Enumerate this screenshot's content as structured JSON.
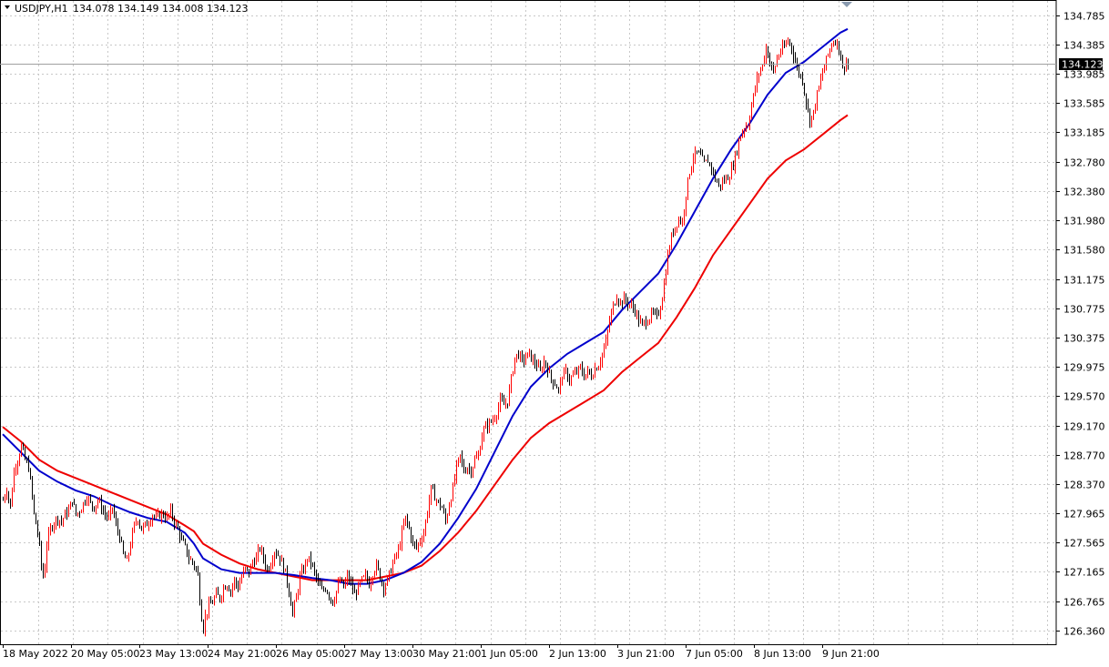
{
  "header": {
    "symbol": "USDJPY,H1",
    "ohlc": "134.078 134.149 134.008 134.123"
  },
  "current_price_label": "134.123",
  "colors": {
    "bull_candle": "#ff0000",
    "bear_candle": "#000000",
    "ma_fast": "#0000cc",
    "ma_slow": "#ee0000",
    "grid": "#c8c8c8",
    "price_line": "#a0a0a0",
    "price_tag_bg": "#000000"
  },
  "chart_data": {
    "type": "line",
    "title": "USDJPY,H1",
    "grid": true,
    "ylim": [
      126.16,
      134.985
    ],
    "y_ticks": [
      "134.785",
      "134.385",
      "133.985",
      "133.585",
      "133.185",
      "132.780",
      "132.380",
      "131.980",
      "131.580",
      "131.175",
      "130.775",
      "130.375",
      "129.975",
      "129.570",
      "129.170",
      "128.770",
      "128.370",
      "127.965",
      "127.565",
      "127.165",
      "126.765",
      "126.360"
    ],
    "x_ticks": [
      "18 May 2022",
      "20 May 05:00",
      "23 May 13:00",
      "24 May 21:00",
      "26 May 05:00",
      "27 May 13:00",
      "30 May 21:00",
      "1 Jun 05:00",
      "2 Jun 13:00",
      "3 Jun 21:00",
      "7 Jun 05:00",
      "8 Jun 13:00",
      "9 Jun 21:00"
    ],
    "price_path": [
      [
        0,
        128.15
      ],
      [
        4,
        128.3
      ],
      [
        8,
        128.05
      ],
      [
        12,
        128.55
      ],
      [
        16,
        128.7
      ],
      [
        20,
        128.88
      ],
      [
        24,
        128.7
      ],
      [
        28,
        128.6
      ],
      [
        32,
        128.2
      ],
      [
        34,
        127.95
      ],
      [
        38,
        127.7
      ],
      [
        40,
        127.5
      ],
      [
        42,
        127.25
      ],
      [
        44,
        127.1
      ],
      [
        46,
        127.25
      ],
      [
        48,
        127.55
      ],
      [
        52,
        127.75
      ],
      [
        56,
        127.85
      ],
      [
        60,
        127.9
      ],
      [
        64,
        127.85
      ],
      [
        68,
        127.95
      ],
      [
        72,
        128.0
      ],
      [
        76,
        128.15
      ],
      [
        80,
        127.95
      ],
      [
        84,
        128.0
      ],
      [
        88,
        128.1
      ],
      [
        92,
        128.2
      ],
      [
        96,
        128.1
      ],
      [
        100,
        128.05
      ],
      [
        104,
        128.15
      ],
      [
        108,
        128.05
      ],
      [
        112,
        127.95
      ],
      [
        116,
        127.9
      ],
      [
        120,
        128.05
      ],
      [
        124,
        127.8
      ],
      [
        128,
        127.65
      ],
      [
        132,
        127.4
      ],
      [
        136,
        127.3
      ],
      [
        140,
        127.55
      ],
      [
        144,
        127.8
      ],
      [
        148,
        127.9
      ],
      [
        152,
        127.75
      ],
      [
        156,
        127.8
      ],
      [
        160,
        127.85
      ],
      [
        164,
        127.95
      ],
      [
        168,
        127.9
      ],
      [
        172,
        127.95
      ],
      [
        176,
        127.95
      ],
      [
        180,
        127.9
      ],
      [
        184,
        128.0
      ],
      [
        188,
        127.85
      ],
      [
        192,
        127.75
      ],
      [
        196,
        127.6
      ],
      [
        200,
        127.5
      ],
      [
        204,
        127.35
      ],
      [
        208,
        127.3
      ],
      [
        212,
        127.2
      ],
      [
        214,
        127.1
      ],
      [
        216,
        126.8
      ],
      [
        218,
        126.55
      ],
      [
        220,
        126.4
      ],
      [
        222,
        126.55
      ],
      [
        226,
        126.7
      ],
      [
        230,
        126.75
      ],
      [
        234,
        126.85
      ],
      [
        238,
        126.8
      ],
      [
        242,
        126.95
      ],
      [
        246,
        127.0
      ],
      [
        250,
        126.9
      ],
      [
        254,
        127.05
      ],
      [
        258,
        126.95
      ],
      [
        262,
        127.1
      ],
      [
        266,
        127.2
      ],
      [
        270,
        127.15
      ],
      [
        274,
        127.3
      ],
      [
        278,
        127.35
      ],
      [
        282,
        127.5
      ],
      [
        286,
        127.35
      ],
      [
        290,
        127.2
      ],
      [
        294,
        127.3
      ],
      [
        298,
        127.45
      ],
      [
        302,
        127.4
      ],
      [
        306,
        127.3
      ],
      [
        310,
        127.15
      ],
      [
        314,
        126.9
      ],
      [
        318,
        126.6
      ],
      [
        322,
        126.8
      ],
      [
        326,
        127.1
      ],
      [
        330,
        127.2
      ],
      [
        334,
        127.35
      ],
      [
        338,
        127.3
      ],
      [
        342,
        127.15
      ],
      [
        346,
        127.0
      ],
      [
        350,
        126.9
      ],
      [
        354,
        126.95
      ],
      [
        358,
        126.85
      ],
      [
        362,
        126.75
      ],
      [
        366,
        126.9
      ],
      [
        370,
        127.05
      ],
      [
        374,
        126.95
      ],
      [
        378,
        127.1
      ],
      [
        382,
        127.0
      ],
      [
        386,
        126.85
      ],
      [
        390,
        126.95
      ],
      [
        394,
        127.05
      ],
      [
        398,
        127.1
      ],
      [
        402,
        127.0
      ],
      [
        406,
        127.15
      ],
      [
        410,
        127.25
      ],
      [
        414,
        127.1
      ],
      [
        418,
        126.95
      ],
      [
        422,
        127.05
      ],
      [
        426,
        127.2
      ],
      [
        430,
        127.35
      ],
      [
        434,
        127.45
      ],
      [
        438,
        127.7
      ],
      [
        442,
        127.9
      ],
      [
        446,
        127.75
      ],
      [
        450,
        127.55
      ],
      [
        454,
        127.5
      ],
      [
        458,
        127.6
      ],
      [
        462,
        127.7
      ],
      [
        466,
        128.0
      ],
      [
        470,
        128.3
      ],
      [
        474,
        128.2
      ],
      [
        478,
        128.1
      ],
      [
        482,
        128.05
      ],
      [
        486,
        127.85
      ],
      [
        490,
        128.1
      ],
      [
        494,
        128.3
      ],
      [
        498,
        128.6
      ],
      [
        502,
        128.75
      ],
      [
        506,
        128.55
      ],
      [
        510,
        128.6
      ],
      [
        514,
        128.55
      ],
      [
        518,
        128.7
      ],
      [
        522,
        128.75
      ],
      [
        526,
        129.05
      ],
      [
        530,
        129.15
      ],
      [
        534,
        129.2
      ],
      [
        538,
        129.25
      ],
      [
        542,
        129.35
      ],
      [
        546,
        129.5
      ],
      [
        550,
        129.45
      ],
      [
        554,
        129.5
      ],
      [
        558,
        129.8
      ],
      [
        562,
        130.1
      ],
      [
        566,
        130.15
      ],
      [
        570,
        130.05
      ],
      [
        574,
        130.1
      ],
      [
        578,
        130.15
      ],
      [
        582,
        130.05
      ],
      [
        586,
        130.0
      ],
      [
        590,
        129.9
      ],
      [
        594,
        130.05
      ],
      [
        598,
        129.95
      ],
      [
        602,
        129.8
      ],
      [
        606,
        129.75
      ],
      [
        610,
        129.65
      ],
      [
        614,
        129.85
      ],
      [
        618,
        129.9
      ],
      [
        622,
        129.8
      ],
      [
        626,
        129.85
      ],
      [
        630,
        129.9
      ],
      [
        634,
        129.95
      ],
      [
        638,
        129.85
      ],
      [
        642,
        129.9
      ],
      [
        646,
        129.85
      ],
      [
        650,
        129.95
      ],
      [
        654,
        130.0
      ],
      [
        658,
        130.15
      ],
      [
        662,
        130.3
      ],
      [
        666,
        130.6
      ],
      [
        670,
        130.8
      ],
      [
        674,
        130.95
      ],
      [
        678,
        130.85
      ],
      [
        682,
        130.9
      ],
      [
        686,
        130.85
      ],
      [
        690,
        130.8
      ],
      [
        694,
        130.75
      ],
      [
        698,
        130.6
      ],
      [
        702,
        130.55
      ],
      [
        706,
        130.6
      ],
      [
        710,
        130.65
      ],
      [
        714,
        130.7
      ],
      [
        718,
        130.65
      ],
      [
        722,
        130.8
      ],
      [
        726,
        131.1
      ],
      [
        730,
        131.5
      ],
      [
        734,
        131.75
      ],
      [
        738,
        131.9
      ],
      [
        742,
        132.0
      ],
      [
        746,
        131.95
      ],
      [
        750,
        132.35
      ],
      [
        754,
        132.65
      ],
      [
        758,
        132.85
      ],
      [
        762,
        132.9
      ],
      [
        766,
        132.85
      ],
      [
        770,
        132.75
      ],
      [
        774,
        132.8
      ],
      [
        778,
        132.7
      ],
      [
        782,
        132.55
      ],
      [
        786,
        132.45
      ],
      [
        790,
        132.5
      ],
      [
        794,
        132.55
      ],
      [
        798,
        132.6
      ],
      [
        802,
        132.75
      ],
      [
        806,
        132.95
      ],
      [
        810,
        133.15
      ],
      [
        814,
        133.25
      ],
      [
        818,
        133.3
      ],
      [
        822,
        133.55
      ],
      [
        826,
        133.8
      ],
      [
        830,
        134.0
      ],
      [
        834,
        134.1
      ],
      [
        838,
        134.35
      ],
      [
        842,
        134.15
      ],
      [
        846,
        134.0
      ],
      [
        850,
        134.2
      ],
      [
        854,
        134.3
      ],
      [
        858,
        134.35
      ],
      [
        862,
        134.45
      ],
      [
        866,
        134.35
      ],
      [
        870,
        134.15
      ],
      [
        874,
        134.0
      ],
      [
        878,
        133.9
      ],
      [
        882,
        133.6
      ],
      [
        886,
        133.35
      ],
      [
        890,
        133.45
      ],
      [
        894,
        133.7
      ],
      [
        898,
        133.9
      ],
      [
        902,
        134.1
      ],
      [
        906,
        134.25
      ],
      [
        910,
        134.4
      ],
      [
        914,
        134.45
      ],
      [
        918,
        134.35
      ],
      [
        922,
        134.05
      ],
      [
        926,
        134.15
      ],
      [
        928,
        134.12
      ]
    ],
    "series": [
      {
        "points": [
          [
            0,
            129.15
          ],
          [
            20,
            128.95
          ],
          [
            40,
            128.7
          ],
          [
            60,
            128.55
          ],
          [
            80,
            128.45
          ],
          [
            100,
            128.35
          ],
          [
            120,
            128.25
          ],
          [
            140,
            128.15
          ],
          [
            160,
            128.05
          ],
          [
            180,
            127.95
          ],
          [
            200,
            127.8
          ],
          [
            210,
            127.72
          ],
          [
            220,
            127.55
          ],
          [
            240,
            127.4
          ],
          [
            260,
            127.28
          ],
          [
            280,
            127.2
          ],
          [
            300,
            127.15
          ],
          [
            320,
            127.1
          ],
          [
            340,
            127.05
          ],
          [
            360,
            127.05
          ],
          [
            380,
            127.05
          ],
          [
            400,
            127.05
          ],
          [
            420,
            127.1
          ],
          [
            440,
            127.15
          ],
          [
            460,
            127.25
          ],
          [
            480,
            127.45
          ],
          [
            500,
            127.7
          ],
          [
            520,
            128.0
          ],
          [
            540,
            128.35
          ],
          [
            560,
            128.7
          ],
          [
            580,
            129.0
          ],
          [
            600,
            129.2
          ],
          [
            620,
            129.35
          ],
          [
            640,
            129.5
          ],
          [
            660,
            129.65
          ],
          [
            680,
            129.9
          ],
          [
            700,
            130.1
          ],
          [
            720,
            130.3
          ],
          [
            740,
            130.65
          ],
          [
            760,
            131.05
          ],
          [
            780,
            131.5
          ],
          [
            800,
            131.85
          ],
          [
            820,
            132.2
          ],
          [
            840,
            132.55
          ],
          [
            860,
            132.8
          ],
          [
            880,
            132.95
          ],
          [
            900,
            133.15
          ],
          [
            920,
            133.35
          ],
          [
            928,
            133.42
          ]
        ]
      },
      {
        "points": [
          [
            0,
            129.05
          ],
          [
            20,
            128.8
          ],
          [
            40,
            128.55
          ],
          [
            60,
            128.4
          ],
          [
            80,
            128.28
          ],
          [
            100,
            128.2
          ],
          [
            120,
            128.08
          ],
          [
            140,
            127.98
          ],
          [
            160,
            127.9
          ],
          [
            180,
            127.85
          ],
          [
            200,
            127.7
          ],
          [
            210,
            127.55
          ],
          [
            220,
            127.35
          ],
          [
            240,
            127.2
          ],
          [
            260,
            127.15
          ],
          [
            280,
            127.15
          ],
          [
            300,
            127.15
          ],
          [
            320,
            127.12
          ],
          [
            340,
            127.08
          ],
          [
            360,
            127.05
          ],
          [
            380,
            127.0
          ],
          [
            400,
            127.0
          ],
          [
            420,
            127.05
          ],
          [
            440,
            127.15
          ],
          [
            460,
            127.3
          ],
          [
            480,
            127.55
          ],
          [
            500,
            127.9
          ],
          [
            520,
            128.3
          ],
          [
            540,
            128.8
          ],
          [
            560,
            129.3
          ],
          [
            580,
            129.7
          ],
          [
            600,
            129.95
          ],
          [
            620,
            130.15
          ],
          [
            640,
            130.3
          ],
          [
            660,
            130.45
          ],
          [
            680,
            130.75
          ],
          [
            700,
            131.0
          ],
          [
            720,
            131.25
          ],
          [
            740,
            131.65
          ],
          [
            760,
            132.1
          ],
          [
            780,
            132.55
          ],
          [
            800,
            132.95
          ],
          [
            820,
            133.3
          ],
          [
            840,
            133.7
          ],
          [
            860,
            134.0
          ],
          [
            880,
            134.15
          ],
          [
            900,
            134.35
          ],
          [
            920,
            134.55
          ],
          [
            928,
            134.6
          ]
        ]
      }
    ]
  }
}
